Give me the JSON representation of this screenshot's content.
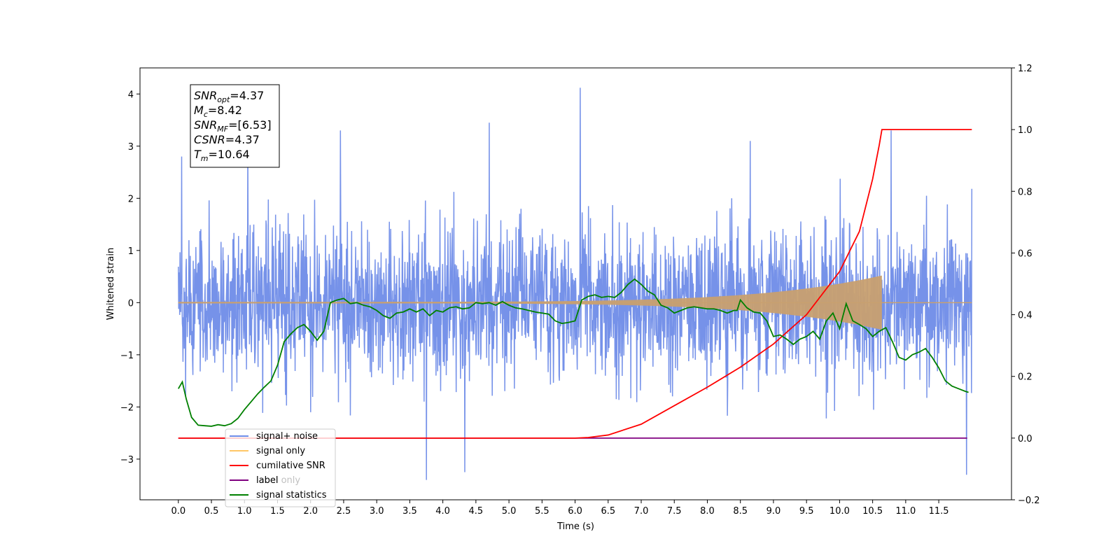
{
  "chart_data": {
    "type": "line",
    "xlabel": "Time (s)",
    "ylabel": "Whitened strain",
    "xlim": [
      -0.58,
      12.6
    ],
    "ylim": [
      -3.78,
      4.5
    ],
    "y2lim": [
      -0.2,
      1.2
    ],
    "xticks": [
      0.0,
      0.5,
      1.0,
      1.5,
      2.0,
      2.5,
      3.0,
      3.5,
      4.0,
      4.5,
      5.0,
      5.5,
      6.0,
      6.5,
      7.0,
      7.5,
      8.0,
      8.5,
      9.0,
      9.5,
      10.0,
      10.5,
      11.0,
      11.5
    ],
    "xtick_labels": [
      "0.0",
      "0.5",
      "1.0",
      "1.5",
      "2.0",
      "2.5",
      "3.0",
      "3.5",
      "4.0",
      "4.5",
      "5.0",
      "5.5",
      "6.0",
      "6.5",
      "7.0",
      "7.5",
      "8.0",
      "8.5",
      "9.0",
      "9.5",
      "10.0",
      "10.5",
      "11.0",
      "11.5"
    ],
    "yticks": [
      -3,
      -2,
      -1,
      0,
      1,
      2,
      3,
      4
    ],
    "ytick_labels": [
      "−3",
      "−2",
      "−1",
      "0",
      "1",
      "2",
      "3",
      "4"
    ],
    "y2ticks": [
      -0.2,
      0.0,
      0.2,
      0.4,
      0.6,
      0.8,
      1.0,
      1.2
    ],
    "y2tick_labels": [
      "−0.2",
      "0.0",
      "0.2",
      "0.4",
      "0.6",
      "0.8",
      "1.0",
      "1.2"
    ],
    "annotation": [
      {
        "main": "SNR",
        "sub": "opt",
        "value": "=4.37"
      },
      {
        "main": "M",
        "sub": "c",
        "value": "=8.42"
      },
      {
        "main": "SNR",
        "sub": "MF",
        "value": "=[6.53]"
      },
      {
        "main": "CSNR",
        "sub": "",
        "value": "=4.37"
      },
      {
        "main": "T",
        "sub": "m",
        "value": "=10.64"
      }
    ],
    "legend": [
      {
        "label": "signal+ noise",
        "color": "#6f8ce8"
      },
      {
        "label": "signal only",
        "color": "#ffc766"
      },
      {
        "label": "cumilative SNR",
        "color": "#ff0000"
      },
      {
        "label": "label",
        "color": "#800080"
      },
      {
        "label": "signal statistics",
        "color": "#008000"
      }
    ],
    "hidden_legend_text": "label only",
    "series": [
      {
        "name": "signal+ noise",
        "axis": "left",
        "color": "#6f8ce8",
        "x_range": [
          0.0,
          12.0
        ],
        "std": 0.72,
        "notable_peaks": [
          [
            0.05,
            2.8
          ],
          [
            1.05,
            2.95
          ],
          [
            2.45,
            3.3
          ],
          [
            4.7,
            3.45
          ],
          [
            6.08,
            4.12
          ],
          [
            8.65,
            3.1
          ],
          [
            10.78,
            3.3
          ],
          [
            3.75,
            -3.4
          ],
          [
            4.33,
            -3.25
          ],
          [
            11.92,
            -3.3
          ]
        ]
      },
      {
        "name": "signal only",
        "axis": "left",
        "color": "#c8a070",
        "x_range": [
          0.0,
          12.0
        ],
        "merger_time": 10.64,
        "peak_amplitude": 0.52
      },
      {
        "name": "cumilative SNR",
        "axis": "right",
        "color": "#ff0000",
        "x": [
          0.0,
          6.0,
          6.2,
          6.5,
          7.0,
          7.5,
          8.0,
          8.5,
          9.0,
          9.5,
          10.0,
          10.3,
          10.5,
          10.6,
          10.64,
          12.0
        ],
        "y": [
          0.0,
          0.0,
          0.002,
          0.01,
          0.045,
          0.105,
          0.165,
          0.23,
          0.305,
          0.4,
          0.54,
          0.67,
          0.84,
          0.95,
          1.0,
          1.0
        ]
      },
      {
        "name": "label",
        "axis": "right",
        "color": "#800080",
        "x": [
          0.0,
          11.93
        ],
        "y": [
          0.0,
          0.0
        ]
      },
      {
        "name": "signal statistics",
        "axis": "left",
        "color": "#008000",
        "x": [
          0.0,
          0.06,
          0.12,
          0.2,
          0.3,
          0.4,
          0.5,
          0.6,
          0.7,
          0.8,
          0.9,
          1.0,
          1.1,
          1.2,
          1.3,
          1.4,
          1.5,
          1.6,
          1.7,
          1.8,
          1.9,
          2.0,
          2.1,
          2.2,
          2.3,
          2.4,
          2.5,
          2.6,
          2.7,
          2.8,
          2.9,
          3.0,
          3.1,
          3.2,
          3.3,
          3.4,
          3.5,
          3.6,
          3.7,
          3.8,
          3.9,
          4.0,
          4.1,
          4.2,
          4.3,
          4.4,
          4.5,
          4.6,
          4.7,
          4.8,
          4.9,
          5.0,
          5.1,
          5.2,
          5.3,
          5.4,
          5.5,
          5.6,
          5.7,
          5.8,
          5.9,
          6.0,
          6.1,
          6.2,
          6.3,
          6.4,
          6.5,
          6.6,
          6.7,
          6.8,
          6.9,
          7.0,
          7.1,
          7.2,
          7.3,
          7.4,
          7.5,
          7.6,
          7.7,
          7.8,
          7.9,
          8.0,
          8.1,
          8.2,
          8.3,
          8.4,
          8.45,
          8.5,
          8.6,
          8.7,
          8.8,
          8.9,
          9.0,
          9.1,
          9.2,
          9.3,
          9.4,
          9.5,
          9.6,
          9.7,
          9.8,
          9.9,
          10.0,
          10.1,
          10.2,
          10.3,
          10.4,
          10.5,
          10.6,
          10.7,
          10.8,
          10.9,
          11.0,
          11.1,
          11.2,
          11.3,
          11.4,
          11.5,
          11.6,
          11.7,
          11.8,
          11.9,
          11.95
        ],
        "y": [
          -1.65,
          -1.52,
          -1.85,
          -2.2,
          -2.35,
          -2.36,
          -2.37,
          -2.34,
          -2.36,
          -2.32,
          -2.22,
          -2.05,
          -1.9,
          -1.75,
          -1.62,
          -1.5,
          -1.2,
          -0.75,
          -0.6,
          -0.48,
          -0.42,
          -0.55,
          -0.72,
          -0.55,
          0.0,
          0.05,
          0.08,
          -0.02,
          0.0,
          -0.05,
          -0.08,
          -0.15,
          -0.25,
          -0.3,
          -0.2,
          -0.18,
          -0.12,
          -0.18,
          -0.12,
          -0.25,
          -0.15,
          -0.18,
          -0.1,
          -0.08,
          -0.12,
          -0.1,
          0.0,
          -0.02,
          0.0,
          -0.05,
          0.02,
          -0.05,
          -0.1,
          -0.12,
          -0.15,
          -0.18,
          -0.2,
          -0.22,
          -0.35,
          -0.4,
          -0.38,
          -0.35,
          0.05,
          0.12,
          0.15,
          0.1,
          0.12,
          0.1,
          0.2,
          0.35,
          0.45,
          0.35,
          0.22,
          0.15,
          -0.05,
          -0.1,
          -0.2,
          -0.15,
          -0.1,
          -0.08,
          -0.1,
          -0.12,
          -0.12,
          -0.15,
          -0.2,
          -0.15,
          -0.15,
          0.05,
          -0.1,
          -0.18,
          -0.2,
          -0.35,
          -0.65,
          -0.62,
          -0.7,
          -0.8,
          -0.7,
          -0.65,
          -0.55,
          -0.7,
          -0.35,
          -0.2,
          -0.5,
          -0.02,
          -0.35,
          -0.42,
          -0.5,
          -0.65,
          -0.55,
          -0.48,
          -0.75,
          -1.05,
          -1.1,
          -1.0,
          -0.95,
          -0.88,
          -1.05,
          -1.25,
          -1.5,
          -1.6,
          -1.65,
          -1.7,
          -1.72
        ]
      }
    ]
  }
}
